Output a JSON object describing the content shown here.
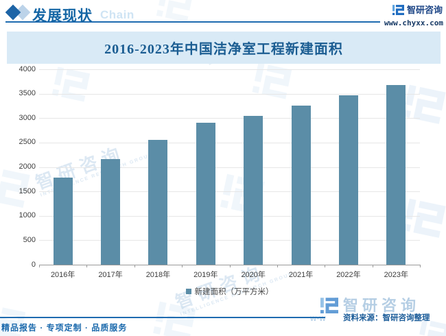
{
  "header": {
    "section_title": "发展现状",
    "watermark_word": "Chain",
    "brand": "智研咨询",
    "website": "www.chyxx.com"
  },
  "chart_data": {
    "type": "bar",
    "title": "2016-2023年中国洁净室工程新建面积",
    "categories": [
      "2016年",
      "2017年",
      "2018年",
      "2019年",
      "2020年",
      "2021年",
      "2022年",
      "2023年"
    ],
    "series": [
      {
        "name": "新建面积（万平方米）",
        "values": [
          1780,
          2160,
          2550,
          2910,
          3050,
          3250,
          3470,
          3680
        ]
      }
    ],
    "ylim": [
      0,
      4000
    ],
    "yticks": [
      0,
      500,
      1000,
      1500,
      2000,
      2500,
      3000,
      3500,
      4000
    ],
    "grid": true,
    "legend_position": "bottom",
    "bar_color": "#5b8da7"
  },
  "legend": {
    "label": "新建面积（万平方米）"
  },
  "footer": {
    "source": "资料来源：智研咨询整理",
    "services": "精品报告 · 专项定制 · 品质服务",
    "brand": "智研咨询"
  },
  "watermark": {
    "brand": "智研咨询",
    "subtext": "INTELLIGENCE RESEARCH GROUP",
    "fragment": "w-w"
  },
  "colors": {
    "accent_blue": "#1e6bb0",
    "bar_teal": "#5b8da7",
    "title_blue": "#1b5d92",
    "band_bg": "#d9eaf6"
  }
}
